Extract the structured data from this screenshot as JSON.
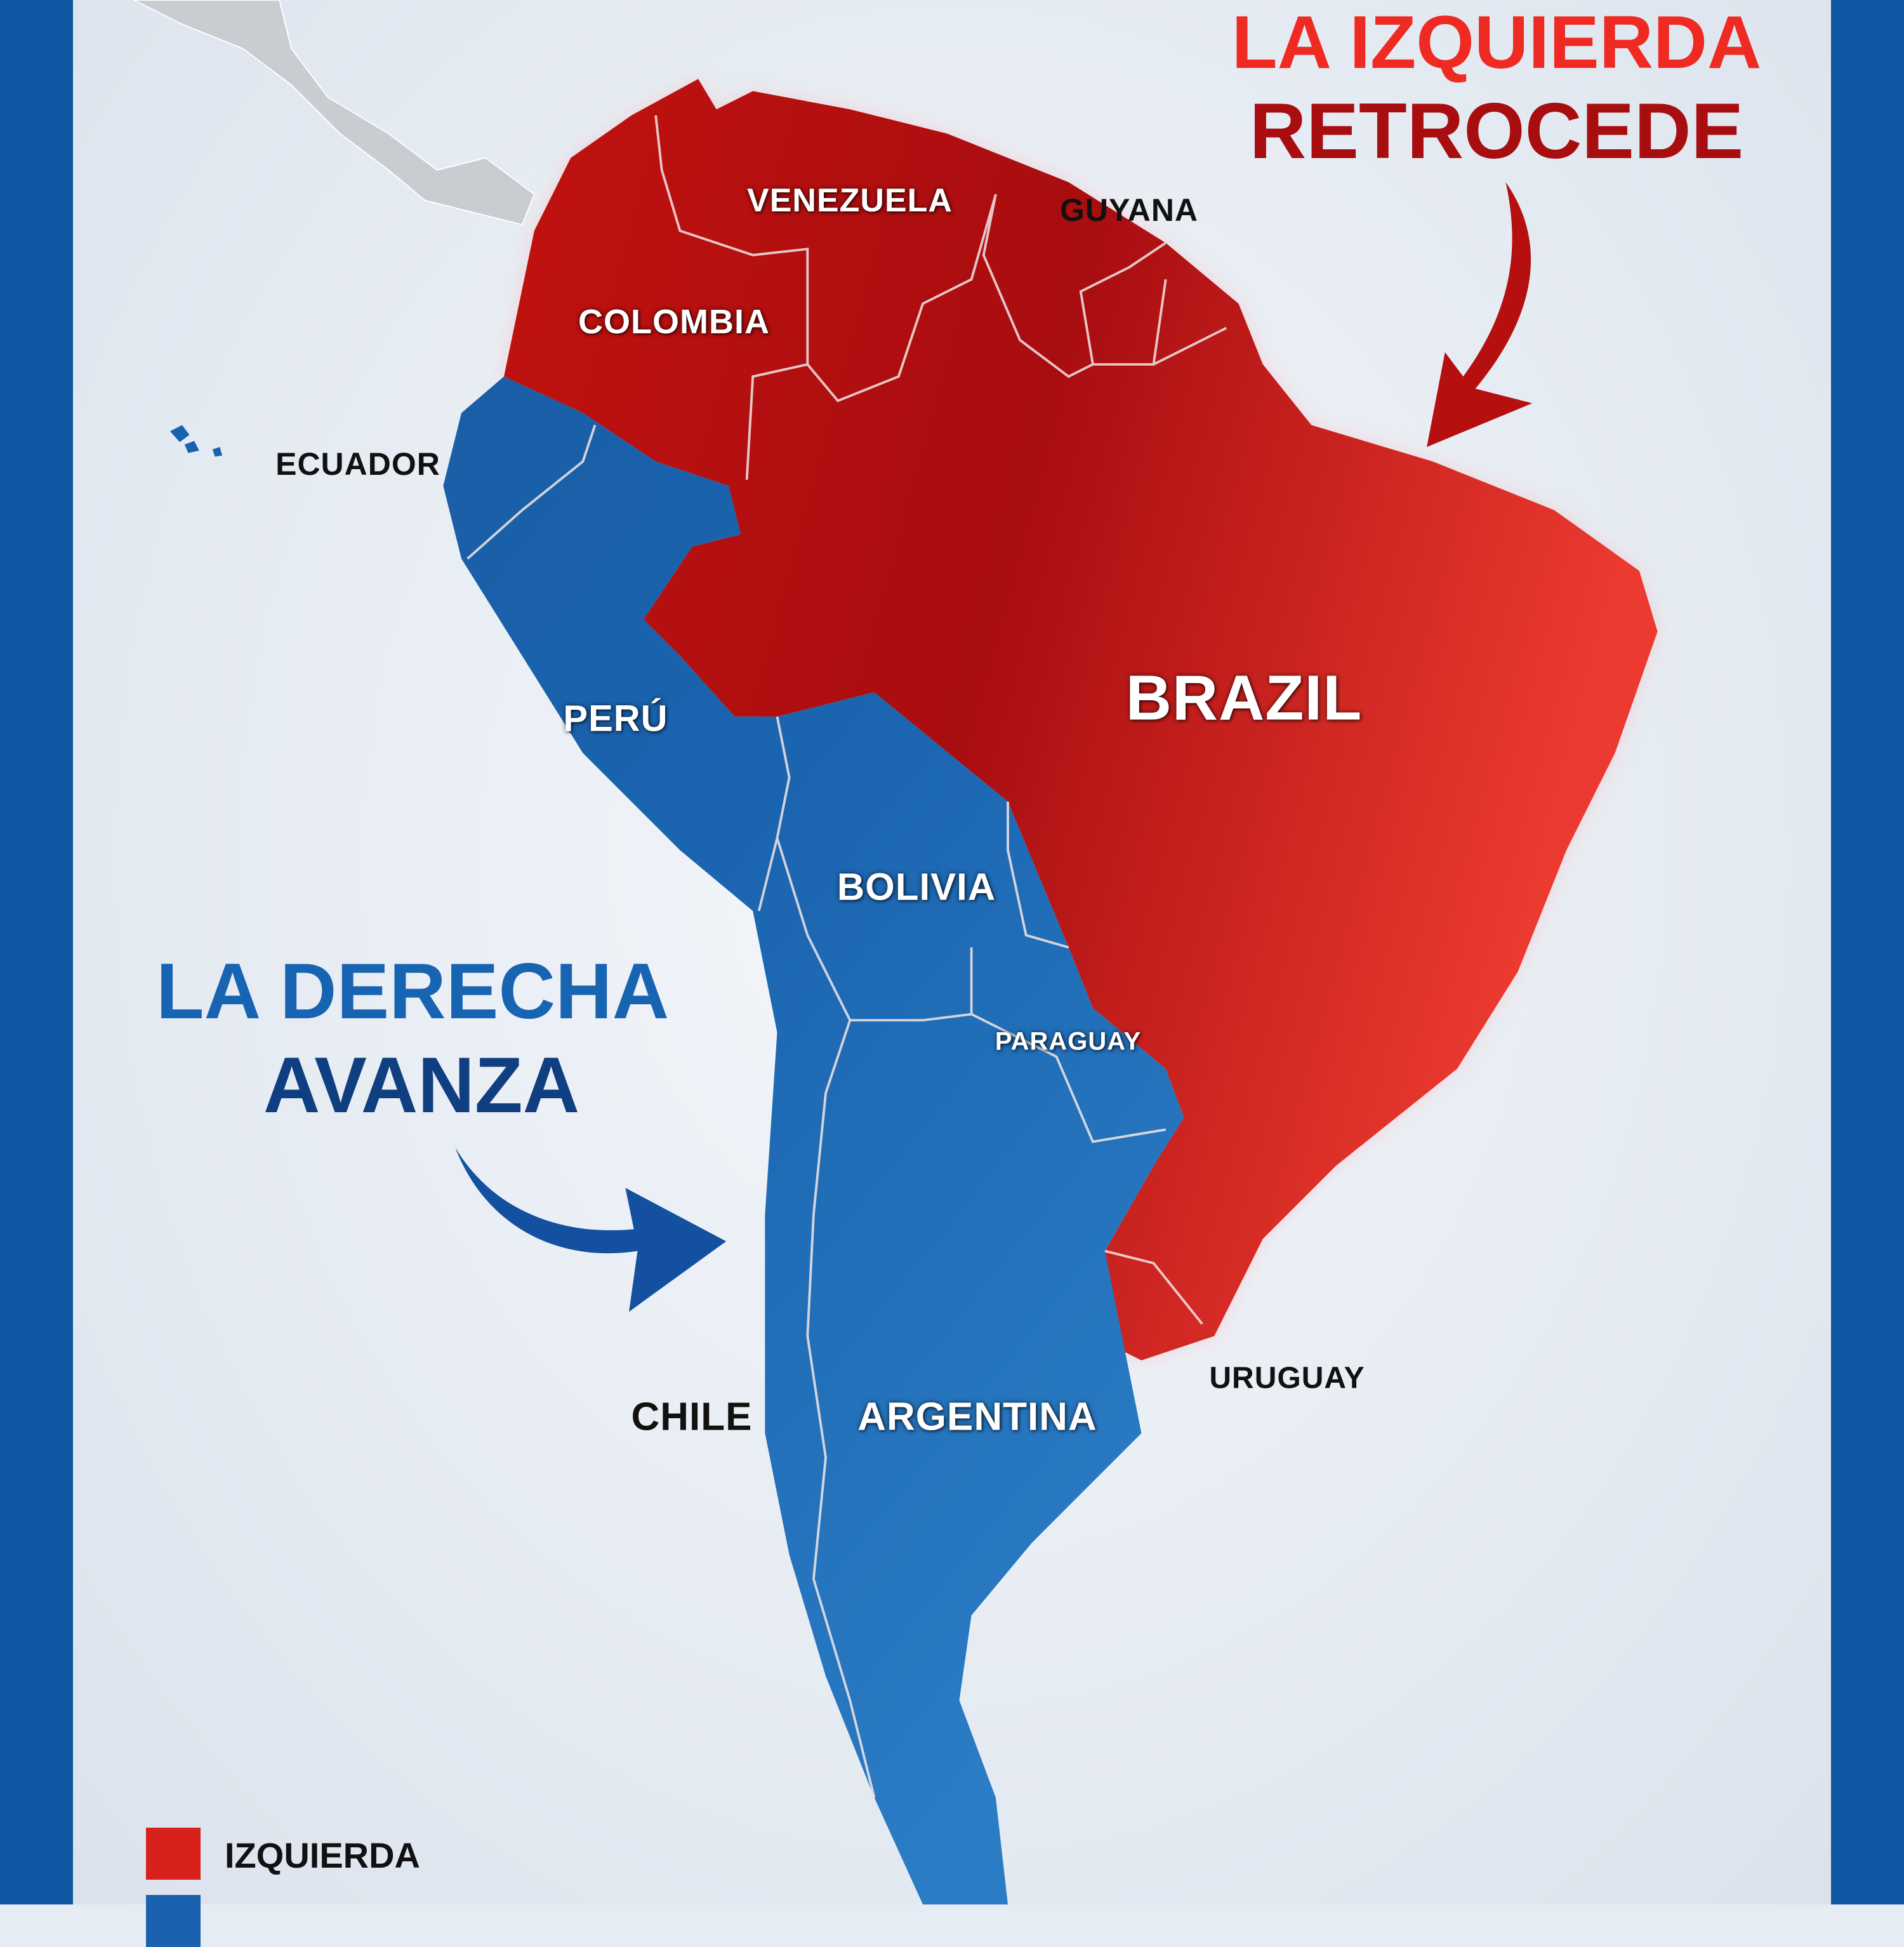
{
  "headline_left": {
    "line1": "LA IZQUIERDA",
    "line2": "RETROCEDE"
  },
  "headline_right": {
    "line1": "LA DERECHA",
    "line2": "AVANZA"
  },
  "countries": {
    "venezuela": "VENEZUELA",
    "guyana": "GUYANA",
    "colombia": "COLOMBIA",
    "ecuador": "ECUADOR",
    "brazil": "BRAZIL",
    "peru": "PERÚ",
    "bolivia": "BOLIVIA",
    "paraguay": "PARAGUAY",
    "uruguay": "URUGUAY",
    "chile": "CHILE",
    "argentina": "ARGENTINA"
  },
  "legend": {
    "items": [
      {
        "label": "IZQUIERDA",
        "color": "#d8201c"
      },
      {
        "label": "",
        "color": "#1a62b0"
      }
    ]
  },
  "colors": {
    "left": "#d8201c",
    "left_dark": "#a80d10",
    "right": "#1a62b0",
    "right_dark": "#0f3f80",
    "frame": "#0f56a3"
  }
}
